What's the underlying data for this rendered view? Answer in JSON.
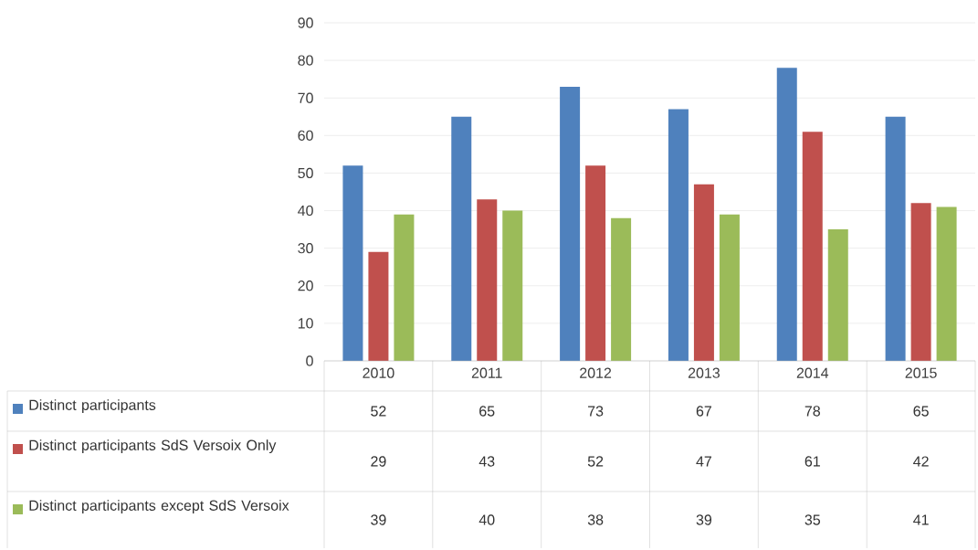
{
  "chart_data": {
    "type": "bar",
    "categories": [
      "2010",
      "2011",
      "2012",
      "2013",
      "2014",
      "2015"
    ],
    "series": [
      {
        "name": "Distinct participants",
        "color": "#4f81bd",
        "values": [
          52,
          65,
          73,
          67,
          78,
          65
        ]
      },
      {
        "name": "Distinct participants SdS Versoix Only",
        "color": "#c0504d",
        "values": [
          29,
          43,
          52,
          47,
          61,
          42
        ]
      },
      {
        "name": "Distinct participants except SdS Versoix",
        "color": "#9bbb59",
        "values": [
          39,
          40,
          38,
          39,
          35,
          41
        ]
      }
    ],
    "ylim": [
      0,
      90
    ],
    "yticks": [
      0,
      10,
      20,
      30,
      40,
      50,
      60,
      70,
      80,
      90
    ],
    "grid": "y",
    "legend": "bottom",
    "data_labels": true
  }
}
